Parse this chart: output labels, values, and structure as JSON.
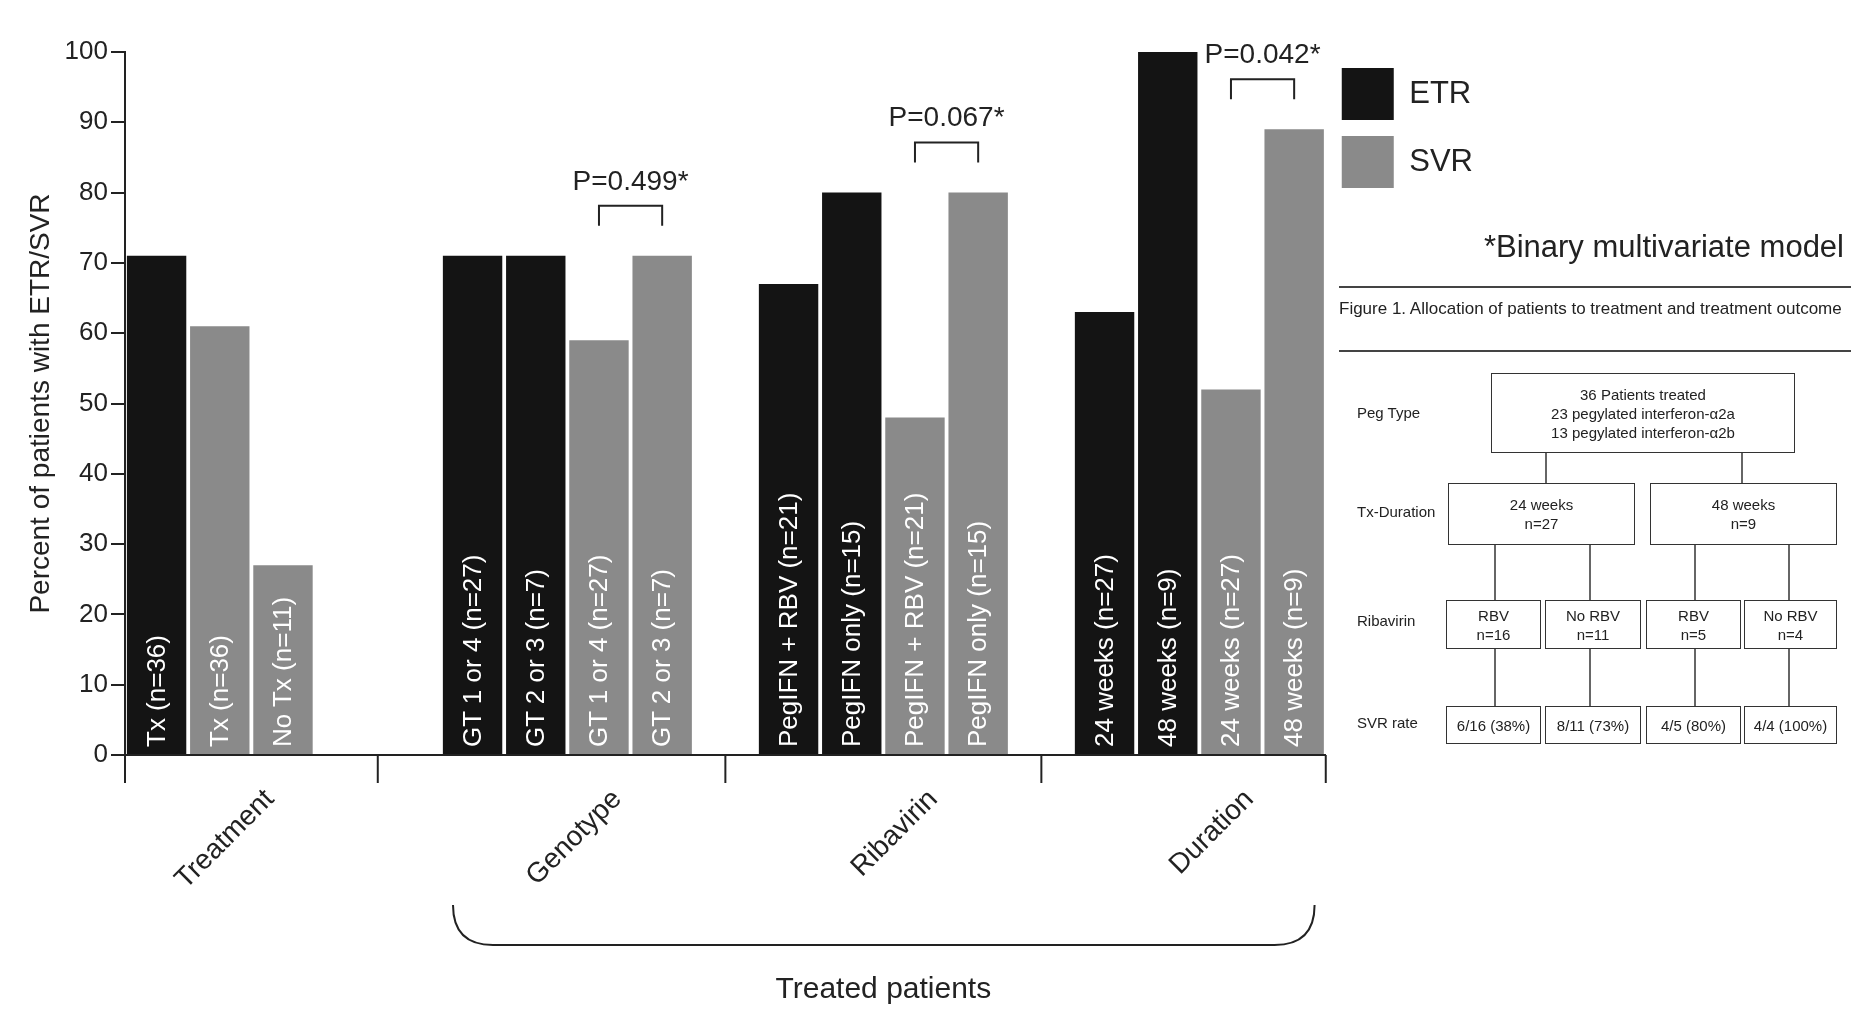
{
  "chart_data": [
    {
      "type": "bar",
      "ylabel": "Percent of patients with ETR/SVR",
      "categories": [
        "Tx (n=36)",
        "Tx (n=36)",
        "No Tx (n=11)",
        null,
        null,
        "GT 1 or 4 (n=27)",
        "GT 2 or 3 (n=7)",
        "GT 1 or 4 (n=27)",
        "GT 2 or 3 (n=7)",
        null,
        "PegIFN + RBV (n=21)",
        "PegIFN only (n=15)",
        "PegIFN + RBV (n=21)",
        "PegIFN only (n=15)",
        null,
        "24 weeks (n=27)",
        "48 weeks (n=9)",
        "24 weeks (n=27)",
        "48 weeks (n=9)"
      ],
      "series": [
        {
          "name": "ETR",
          "color": "#141414",
          "values": [
            71,
            null,
            null,
            null,
            null,
            71,
            71,
            null,
            null,
            null,
            67,
            80,
            null,
            null,
            null,
            63,
            100,
            null,
            null
          ]
        },
        {
          "name": "SVR",
          "color": "#8a8a8a",
          "values": [
            null,
            61,
            27,
            null,
            null,
            null,
            null,
            59,
            71,
            null,
            null,
            null,
            48,
            80,
            null,
            null,
            null,
            52,
            89
          ]
        }
      ],
      "ylim": [
        0,
        100
      ],
      "yticks": [
        0,
        10,
        20,
        30,
        40,
        50,
        60,
        70,
        80,
        90,
        100
      ],
      "grid": false,
      "legend": "top right",
      "annotations": [
        "Treatment",
        "Genotype",
        "Ribavirin",
        "Duration",
        "Treated patients",
        "P=0.499*",
        "P=0.067*",
        "P=0.042*",
        "*Binary multivariate model"
      ]
    },
    {
      "type": "other",
      "title": "Figure 1. Allocation of patients to treatment and treatment outcome",
      "annotations": [
        "Peg Type",
        "Tx-Duration",
        "Ribavirin",
        "SVR rate",
        "36 Patients treated",
        "23 pegylated interferon-α2a",
        "13 pegylated interferon-α2b",
        "24 weeks",
        "n=27",
        "48 weeks",
        "n=9",
        "RBV",
        "n=16",
        "No RBV",
        "n=11",
        "RBV",
        "n=5",
        "No RBV",
        "n=4",
        "6/16 (38%)",
        "8/11 (73%)",
        "4/5 (80%)",
        "4/4 (100%)"
      ]
    }
  ]
}
